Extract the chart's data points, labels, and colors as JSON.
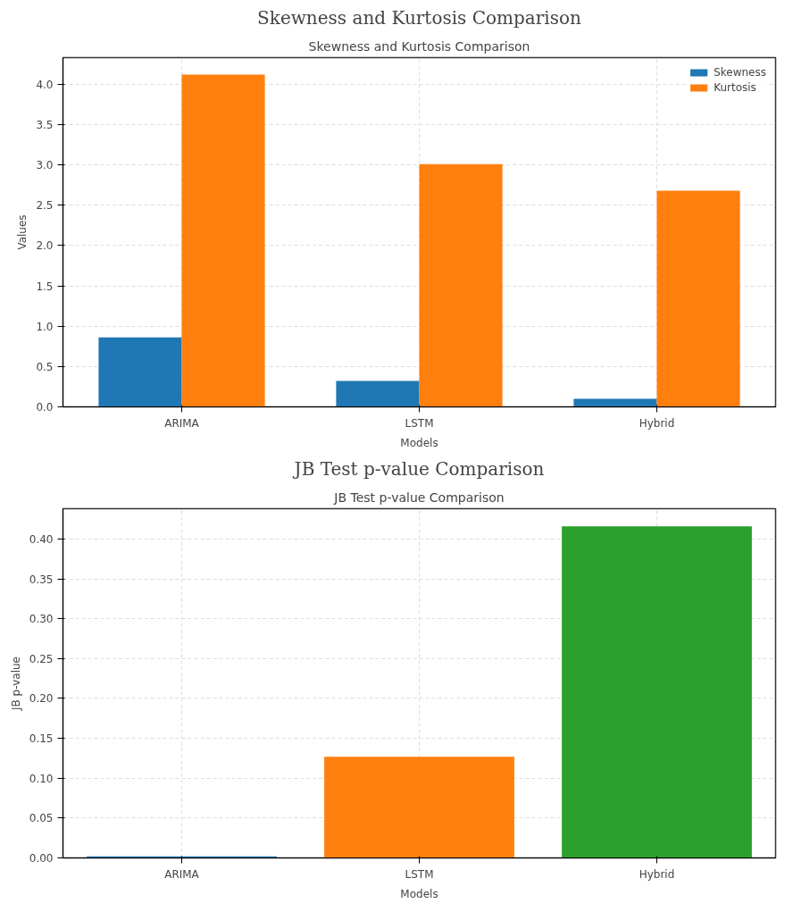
{
  "chart_data": [
    {
      "type": "bar",
      "title": "Skewness and Kurtosis Comparison",
      "subtitle": "Skewness and Kurtosis Comparison",
      "xlabel": "Models",
      "ylabel": "Values",
      "categories": [
        "ARIMA",
        "LSTM",
        "Hybrid"
      ],
      "series": [
        {
          "name": "Skewness",
          "color": "#1f77b4",
          "values": [
            0.86,
            0.32,
            0.1
          ]
        },
        {
          "name": "Kurtosis",
          "color": "#ff7f0e",
          "values": [
            4.12,
            3.01,
            2.68
          ]
        }
      ],
      "ylim": [
        0,
        4.33
      ],
      "yticks": [
        {
          "value": 0,
          "label": "0.0"
        },
        0.5,
        {
          "value": 1,
          "label": "1.0"
        },
        1.5,
        {
          "value": 2,
          "label": "2.0"
        },
        2.5,
        {
          "value": 3,
          "label": "3.0"
        },
        3.5,
        {
          "value": 4,
          "label": "4.0"
        }
      ],
      "grid": true,
      "legend": "top right"
    },
    {
      "type": "bar",
      "title": "JB Test p-value Comparison",
      "subtitle": "JB Test p-value Comparison",
      "xlabel": "Models",
      "ylabel": "JB p-value",
      "categories": [
        "ARIMA",
        "LSTM",
        "Hybrid"
      ],
      "values": [
        0.002,
        0.127,
        0.416
      ],
      "colors": [
        "#1f77b4",
        "#ff7f0e",
        "#2ca02c"
      ],
      "ylim": [
        0,
        0.438
      ],
      "yticks": [
        {
          "value": 0,
          "label": "0.00"
        },
        0.05,
        {
          "value": 0.1,
          "label": "0.10"
        },
        0.15,
        {
          "value": 0.2,
          "label": "0.20"
        },
        0.25,
        {
          "value": 0.3,
          "label": "0.30"
        },
        0.35,
        {
          "value": 0.4,
          "label": "0.40"
        }
      ],
      "grid": true
    }
  ]
}
